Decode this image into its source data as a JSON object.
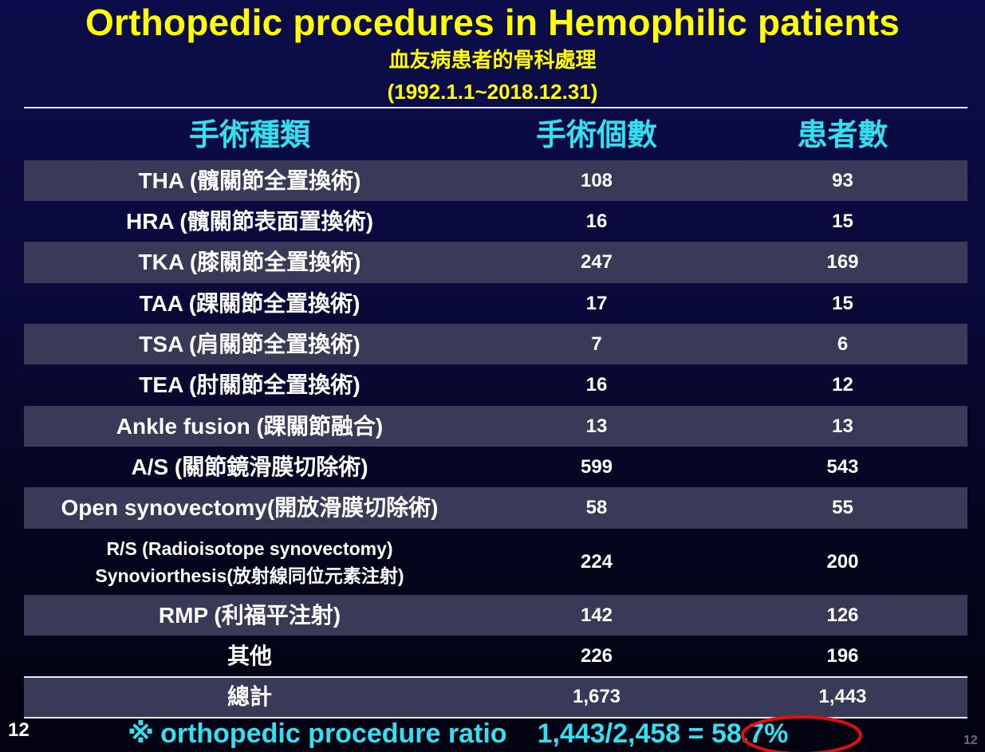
{
  "title": "Orthopedic procedures in Hemophilic patients",
  "subtitle_cn": "血友病患者的骨科處理",
  "subtitle_date": "(1992.1.1~2018.12.31)",
  "table": {
    "headers": [
      "手術種類",
      "手術個數",
      "患者數"
    ],
    "rows": [
      {
        "name": "THA (髖關節全置換術)",
        "surgeries": "108",
        "patients": "93"
      },
      {
        "name": "HRA (髖關節表面置換術)",
        "surgeries": "16",
        "patients": "15"
      },
      {
        "name": "TKA (膝關節全置換術)",
        "surgeries": "247",
        "patients": "169"
      },
      {
        "name": "TAA (踝關節全置換術)",
        "surgeries": "17",
        "patients": "15"
      },
      {
        "name": "TSA (肩關節全置換術)",
        "surgeries": "7",
        "patients": "6"
      },
      {
        "name": "TEA (肘關節全置換術)",
        "surgeries": "16",
        "patients": "12"
      },
      {
        "name": "Ankle fusion (踝關節融合)",
        "surgeries": "13",
        "patients": "13"
      },
      {
        "name": "A/S (關節鏡滑膜切除術)",
        "surgeries": "599",
        "patients": "543"
      },
      {
        "name": "Open synovectomy(開放滑膜切除術)",
        "surgeries": "58",
        "patients": "55"
      },
      {
        "name_line1": "R/S (Radioisotope synovectomy)",
        "name_line2": "Synoviorthesis(放射線同位元素注射)",
        "surgeries": "224",
        "patients": "200"
      },
      {
        "name": "RMP (利福平注射)",
        "surgeries": "142",
        "patients": "126"
      },
      {
        "name": "其他",
        "surgeries": "226",
        "patients": "196"
      }
    ],
    "total": {
      "name": "總計",
      "surgeries": "1,673",
      "patients": "1,443"
    }
  },
  "footnote": {
    "mark": "※",
    "label": "orthopedic procedure ratio",
    "fraction": "1,443/2,458",
    "equals": "=",
    "percent": "58.7%"
  },
  "page_number": "12",
  "page_number_right": "12",
  "colors": {
    "title": "#ffff00",
    "header_text": "#33e0f0",
    "footnote_text": "#33e0f0",
    "highlight_ellipse": "#e01010",
    "stripe": "#393958"
  }
}
